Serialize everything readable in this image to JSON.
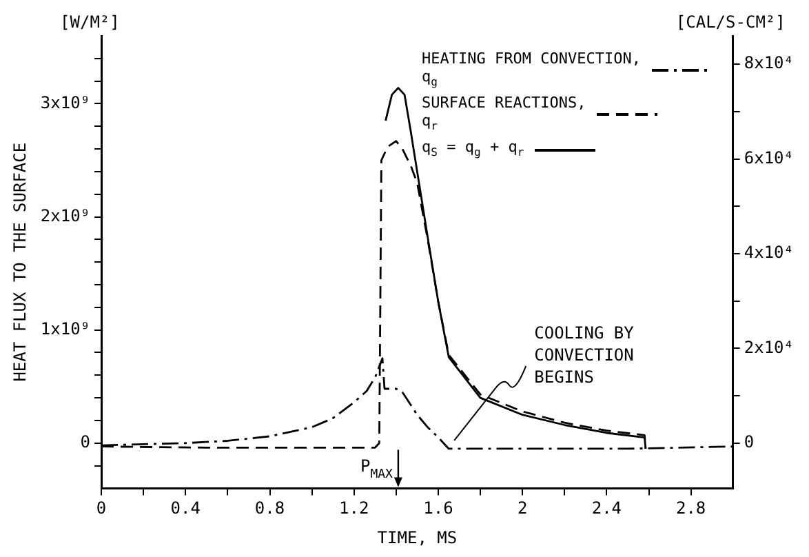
{
  "chart_data": {
    "type": "line",
    "xlabel": "TIME, MS",
    "ylabel": "HEAT FLUX TO THE SURFACE",
    "xlim": [
      0,
      3.0
    ],
    "xticks": [
      0,
      {
        "value": 0.2,
        "label": null
      },
      0.4,
      {
        "value": 0.6,
        "label": null
      },
      0.8,
      {
        "value": 1.0,
        "label": null
      },
      1.2,
      {
        "value": 1.4,
        "label": null
      },
      1.6,
      {
        "value": 1.8,
        "label": null
      },
      2.0,
      {
        "value": 2.2,
        "label": null
      },
      2.4,
      {
        "value": 2.6,
        "label": null
      },
      2.8
    ],
    "ylim": [
      -400000000,
      3600000000
    ],
    "yticks": [
      {
        "value": -200000000,
        "label": null
      },
      {
        "value": 0,
        "label": "0"
      },
      {
        "value": 200000000,
        "label": null
      },
      {
        "value": 400000000,
        "label": null
      },
      {
        "value": 600000000,
        "label": null
      },
      {
        "value": 800000000,
        "label": null
      },
      {
        "value": 1000000000,
        "label": "1x10⁹"
      },
      {
        "value": 1200000000,
        "label": null
      },
      {
        "value": 1400000000,
        "label": null
      },
      {
        "value": 1600000000,
        "label": null
      },
      {
        "value": 1800000000,
        "label": null
      },
      {
        "value": 2000000000,
        "label": "2x10⁹"
      },
      {
        "value": 2200000000,
        "label": null
      },
      {
        "value": 2400000000,
        "label": null
      },
      {
        "value": 2600000000,
        "label": null
      },
      {
        "value": 2800000000,
        "label": null
      },
      {
        "value": 3000000000,
        "label": "3x10⁹"
      },
      {
        "value": 3200000000,
        "label": null
      },
      {
        "value": 3400000000,
        "label": null
      }
    ],
    "y2lim": [
      -9554,
      85985
    ],
    "y2ticks": [
      {
        "value": 0,
        "label": "0"
      },
      {
        "value": 10000,
        "label": null
      },
      {
        "value": 20000,
        "label": "2x10⁴"
      },
      {
        "value": 30000,
        "label": null
      },
      {
        "value": 40000,
        "label": "4x10⁴"
      },
      {
        "value": 50000,
        "label": null
      },
      {
        "value": 60000,
        "label": "6x10⁴"
      },
      {
        "value": 70000,
        "label": null
      },
      {
        "value": 80000,
        "label": "8x10⁴"
      }
    ],
    "grid": false,
    "legend": "top right",
    "marker": "none",
    "series": [
      {
        "name": "HEATING FROM CONVECTION, q$_{g}$",
        "color": "#000000",
        "line_style": "dashdot",
        "x": [
          0,
          0.2,
          0.4,
          0.6,
          0.8,
          1.0,
          1.1,
          1.2,
          1.26,
          1.3,
          1.335,
          1.345,
          1.4,
          1.43,
          1.5,
          1.55,
          1.6,
          1.65,
          2.0,
          2.5,
          3.0
        ],
        "values": [
          -20000000,
          -10000000,
          0,
          20000000,
          60000000,
          140000000,
          220000000,
          360000000,
          460000000,
          580000000,
          750000000,
          480000000,
          480000000,
          450000000,
          250000000,
          140000000,
          50000000,
          -50000000,
          -50000000,
          -50000000,
          -30000000
        ]
      },
      {
        "name": "SURFACE REACTIONS, q$_{r}$",
        "color": "#000000",
        "line_style": "dashed",
        "x": [
          0,
          0.5,
          1.0,
          1.3,
          1.32,
          1.33,
          1.36,
          1.4,
          1.43,
          1.47,
          1.5,
          1.55,
          1.6,
          1.65,
          1.8,
          2.0,
          2.2,
          2.4,
          2.58,
          2.585
        ],
        "values": [
          -30000000,
          -40000000,
          -40000000,
          -40000000,
          0,
          2500000000,
          2620000000,
          2670000000,
          2600000000,
          2450000000,
          2300000000,
          1800000000,
          1250000000,
          780000000,
          430000000,
          280000000,
          180000000,
          110000000,
          70000000,
          -50000000
        ]
      },
      {
        "name": "q$_{S}$ = q$_{g}$ + q$_{r}$",
        "color": "#000000",
        "line_style": "solid",
        "x": [
          1.35,
          1.38,
          1.41,
          1.44,
          1.47,
          1.5,
          1.55,
          1.6,
          1.65,
          1.8,
          2.0,
          2.2,
          2.4,
          2.58,
          2.585
        ],
        "values": [
          2850000000,
          3080000000,
          3140000000,
          3080000000,
          2750000000,
          2400000000,
          1820000000,
          1250000000,
          760000000,
          400000000,
          250000000,
          160000000,
          90000000,
          50000000,
          -50000000
        ]
      }
    ],
    "annotations": [
      "[W/M²]",
      "[CAL/S-CM²]",
      {
        "text": "COOLING BY CONVECTION BEGINS",
        "x": 1.65,
        "y": -50000000
      },
      "P$_{MAX}$"
    ]
  }
}
